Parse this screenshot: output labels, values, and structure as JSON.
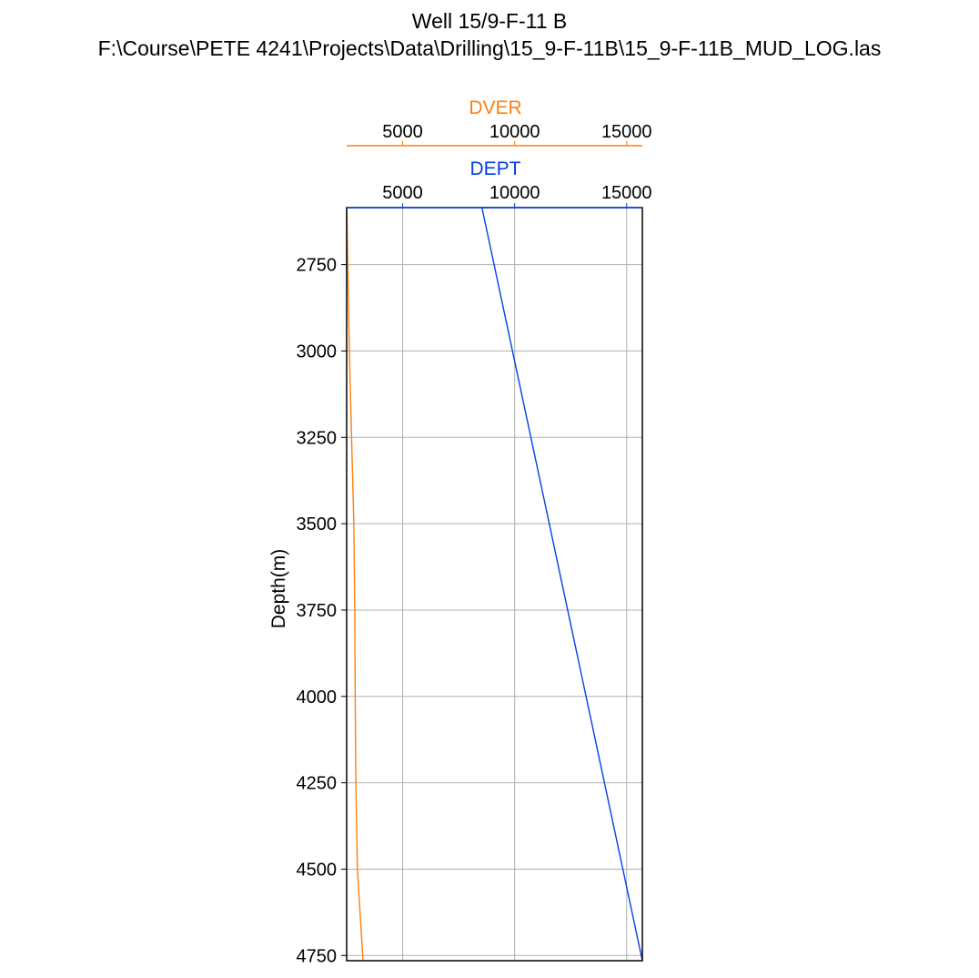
{
  "title_line1": "Well 15/9-F-11 B",
  "title_line2": "F:\\Course\\PETE 4241\\Projects\\Data\\Drilling\\15_9-F-11B\\15_9-F-11B_MUD_LOG.las",
  "chart_data": {
    "type": "line",
    "title": "Well 15/9-F-11 B",
    "subtitle": "F:\\Course\\PETE 4241\\Projects\\Data\\Drilling\\15_9-F-11B\\15_9-F-11B_MUD_LOG.las",
    "ylabel": "Depth(m)",
    "ylim": [
      4765,
      2585
    ],
    "y_inverted": true,
    "yticks": [
      2750,
      3000,
      3250,
      3500,
      3750,
      4000,
      4250,
      4500,
      4750
    ],
    "ytick_labels": [
      "2750",
      "3000",
      "3250",
      "3500",
      "3750",
      "4000",
      "4250",
      "4500",
      "4750"
    ],
    "grid": true,
    "series": [
      {
        "name": "DVER",
        "color": "#ff7f0e",
        "xlim": [
          2500,
          15700
        ],
        "xticks": [
          5000,
          10000,
          15000
        ],
        "xtick_labels": [
          "5000",
          "10000",
          "15000"
        ],
        "axis_position": "top-outer",
        "points": [
          {
            "x": 2510,
            "depth": 2585
          },
          {
            "x": 2550,
            "depth": 2750
          },
          {
            "x": 2620,
            "depth": 3000
          },
          {
            "x": 2720,
            "depth": 3250
          },
          {
            "x": 2820,
            "depth": 3500
          },
          {
            "x": 2860,
            "depth": 3750
          },
          {
            "x": 2880,
            "depth": 4000
          },
          {
            "x": 2910,
            "depth": 4250
          },
          {
            "x": 2980,
            "depth": 4500
          },
          {
            "x": 3230,
            "depth": 4765
          }
        ]
      },
      {
        "name": "DEPT",
        "color": "#0343df",
        "xlim": [
          2500,
          15700
        ],
        "xticks": [
          5000,
          10000,
          15000
        ],
        "xtick_labels": [
          "5000",
          "10000",
          "15000"
        ],
        "axis_position": "top-inner",
        "points": [
          {
            "x": 8540,
            "depth": 2585
          },
          {
            "x": 15700,
            "depth": 4765
          }
        ]
      }
    ]
  }
}
